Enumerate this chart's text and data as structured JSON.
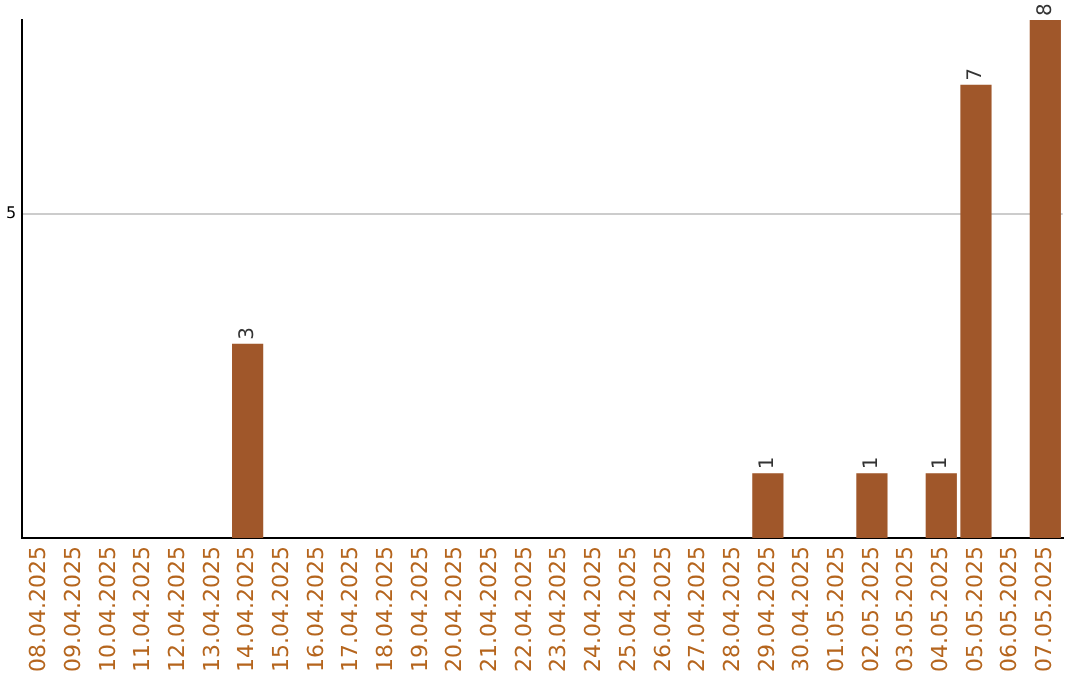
{
  "chart_data": {
    "type": "bar",
    "categories": [
      "08.04.2025",
      "09.04.2025",
      "10.04.2025",
      "11.04.2025",
      "12.04.2025",
      "13.04.2025",
      "14.04.2025",
      "15.04.2025",
      "16.04.2025",
      "17.04.2025",
      "18.04.2025",
      "19.04.2025",
      "20.04.2025",
      "21.04.2025",
      "22.04.2025",
      "23.04.2025",
      "24.04.2025",
      "25.04.2025",
      "26.04.2025",
      "27.04.2025",
      "28.04.2025",
      "29.04.2025",
      "30.04.2025",
      "01.05.2025",
      "02.05.2025",
      "03.05.2025",
      "04.05.2025",
      "05.05.2025",
      "06.05.2025",
      "07.05.2025"
    ],
    "values": [
      0,
      0,
      0,
      0,
      0,
      0,
      3,
      0,
      0,
      0,
      0,
      0,
      0,
      0,
      0,
      0,
      0,
      0,
      0,
      0,
      0,
      1,
      0,
      0,
      1,
      0,
      1,
      7,
      0,
      8
    ],
    "value_labels": [
      null,
      null,
      null,
      null,
      null,
      null,
      "3",
      null,
      null,
      null,
      null,
      null,
      null,
      null,
      null,
      null,
      null,
      null,
      null,
      null,
      null,
      "1",
      null,
      null,
      "1",
      null,
      "1",
      "7",
      null,
      "8"
    ],
    "color": "#a0572a",
    "ylim": [
      0,
      8
    ],
    "yticks": [
      5
    ],
    "grid": "y",
    "legend": false
  }
}
